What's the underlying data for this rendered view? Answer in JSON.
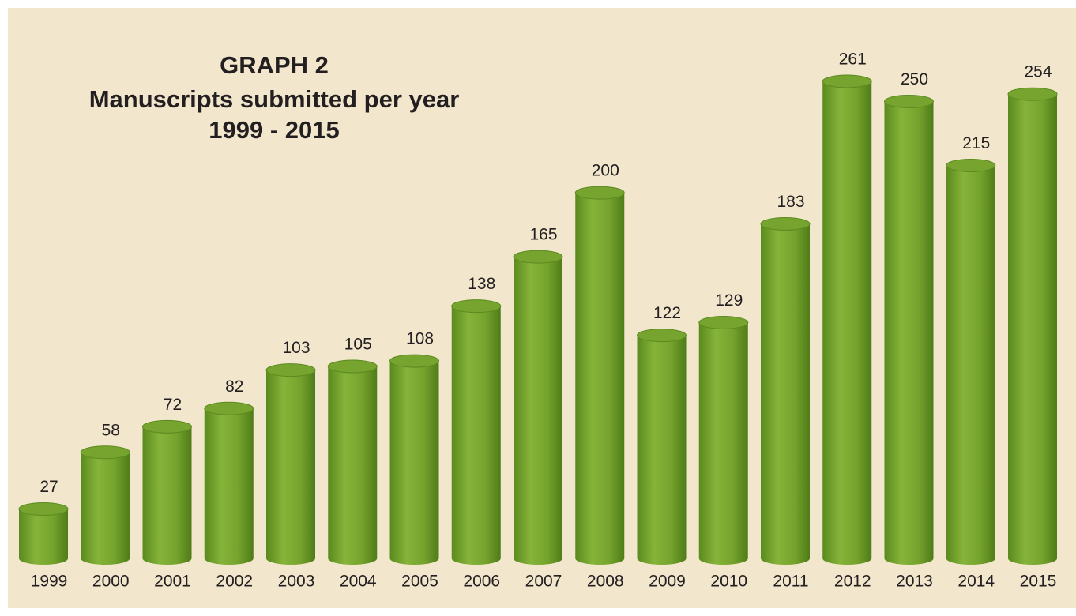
{
  "chart_data": {
    "type": "bar",
    "title": "GRAPH 2",
    "subtitle": "Manuscripts submitted per year",
    "period": "1999 - 2015",
    "categories": [
      "1999",
      "2000",
      "2001",
      "2002",
      "2003",
      "2004",
      "2005",
      "2006",
      "2007",
      "2008",
      "2009",
      "2010",
      "2011",
      "2012",
      "2013",
      "2014",
      "2015"
    ],
    "values": [
      27,
      58,
      72,
      82,
      103,
      105,
      108,
      138,
      165,
      200,
      122,
      129,
      183,
      261,
      250,
      215,
      254
    ],
    "color": "#76a42e"
  }
}
